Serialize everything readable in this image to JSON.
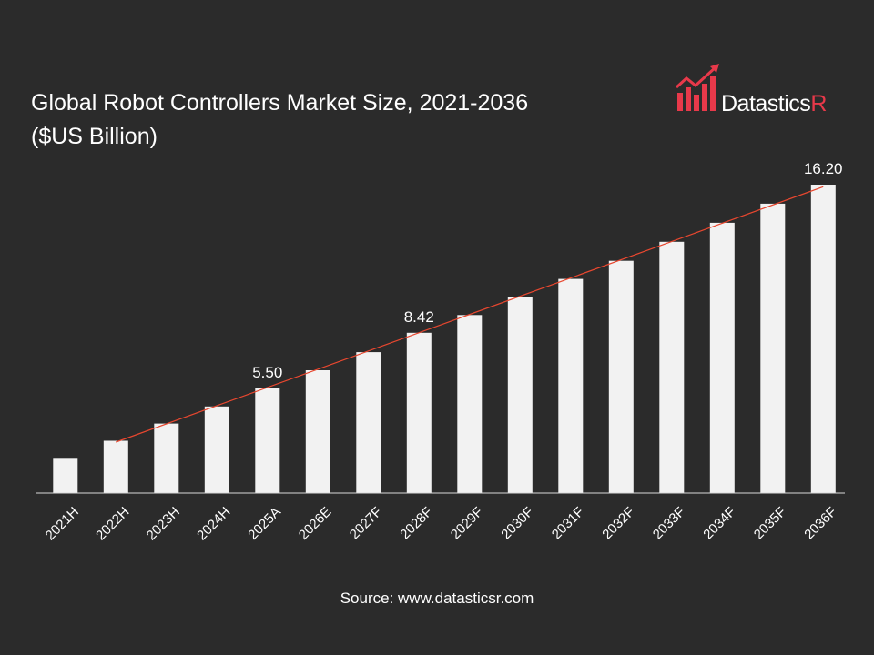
{
  "title_line1": "Global Robot Controllers Market Size, 2021-2036",
  "title_line2": "($US Billion)",
  "logo": {
    "text_main": "Datastics",
    "text_accent": "R",
    "icon": "bar-chart-arrow-icon"
  },
  "source": "Source: www.datasticsr.com",
  "colors": {
    "background": "#2b2b2b",
    "bar": "#f2f2f2",
    "trend": "#e8472f",
    "accent": "#e8394a",
    "text": "#ffffff"
  },
  "chart_data": {
    "type": "bar",
    "categories": [
      "2021H",
      "2022H",
      "2023H",
      "2024H",
      "2025A",
      "2026E",
      "2027F",
      "2028F",
      "2029F",
      "2030F",
      "2031F",
      "2032F",
      "2033F",
      "2034F",
      "2035F",
      "2036F"
    ],
    "values": [
      1.85,
      2.75,
      3.65,
      4.55,
      5.5,
      6.45,
      7.4,
      8.42,
      9.35,
      10.3,
      11.25,
      12.2,
      13.2,
      14.2,
      15.2,
      16.2
    ],
    "data_labels": {
      "4": "5.50",
      "7": "8.42",
      "15": "16.20"
    },
    "trendline": true,
    "ylim": [
      0,
      16.2
    ],
    "xlabel": "",
    "ylabel": "",
    "grid": false
  }
}
